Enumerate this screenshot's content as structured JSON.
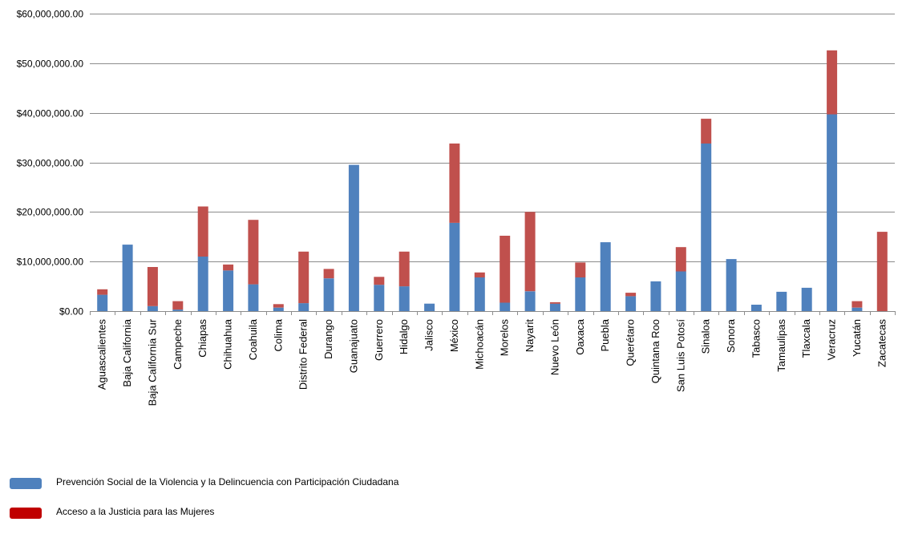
{
  "chart_data": {
    "type": "bar",
    "stacked": true,
    "categories": [
      "Aguascalientes",
      "Baja California",
      "Baja California Sur",
      "Campeche",
      "Chiapas",
      "Chihuahua",
      "Coahuila",
      "Colima",
      "Distrito Federal",
      "Durango",
      "Guanajuato",
      "Guerrero",
      "Hidalgo",
      "Jalisco",
      "México",
      "Michoacán",
      "Morelos",
      "Nayarit",
      "Nuevo León",
      "Oaxaca",
      "Puebla",
      "Querétaro",
      "Quintana Roo",
      "San Luis Potosí",
      "Sinaloa",
      "Sonora",
      "Tabasco",
      "Tamaulipas",
      "Tlaxcala",
      "Veracruz",
      "Yucatán",
      "Zacatecas"
    ],
    "series": [
      {
        "name": "Prevención Social de la Violencia y la Delincuencia con Participación Ciudadana",
        "color": "#4f81bd",
        "values": [
          3300000,
          13400000,
          1000000,
          300000,
          11000000,
          8200000,
          5400000,
          700000,
          1600000,
          6600000,
          29500000,
          5300000,
          5000000,
          1500000,
          17800000,
          6800000,
          1700000,
          4000000,
          1500000,
          6800000,
          13900000,
          3000000,
          6000000,
          8000000,
          33800000,
          10500000,
          1300000,
          3900000,
          4700000,
          39700000,
          700000,
          0
        ]
      },
      {
        "name": "Acceso a la Justicia para las Mujeres",
        "color": "#c0504d",
        "values": [
          1100000,
          0,
          7900000,
          1700000,
          10100000,
          1200000,
          13000000,
          700000,
          10400000,
          1900000,
          0,
          1600000,
          7000000,
          0,
          16000000,
          1000000,
          13500000,
          16000000,
          300000,
          3000000,
          0,
          700000,
          0,
          4900000,
          5000000,
          0,
          0,
          0,
          0,
          12900000,
          1300000,
          16000000
        ]
      }
    ],
    "ylim": [
      0,
      60000000
    ],
    "yticks": [
      {
        "value": 0,
        "label": "$0.00"
      },
      {
        "value": 10000000,
        "label": "$10,000,000.00"
      },
      {
        "value": 20000000,
        "label": "$20,000,000.00"
      },
      {
        "value": 30000000,
        "label": "$30,000,000.00"
      },
      {
        "value": 40000000,
        "label": "$40,000,000.00"
      },
      {
        "value": 50000000,
        "label": "$50,000,000.00"
      },
      {
        "value": 60000000,
        "label": "$60,000,000.00"
      }
    ],
    "grid": true,
    "legend_position": "bottom-left",
    "legend_swatch_colors": [
      "#4f81bd",
      "#c00000"
    ]
  }
}
